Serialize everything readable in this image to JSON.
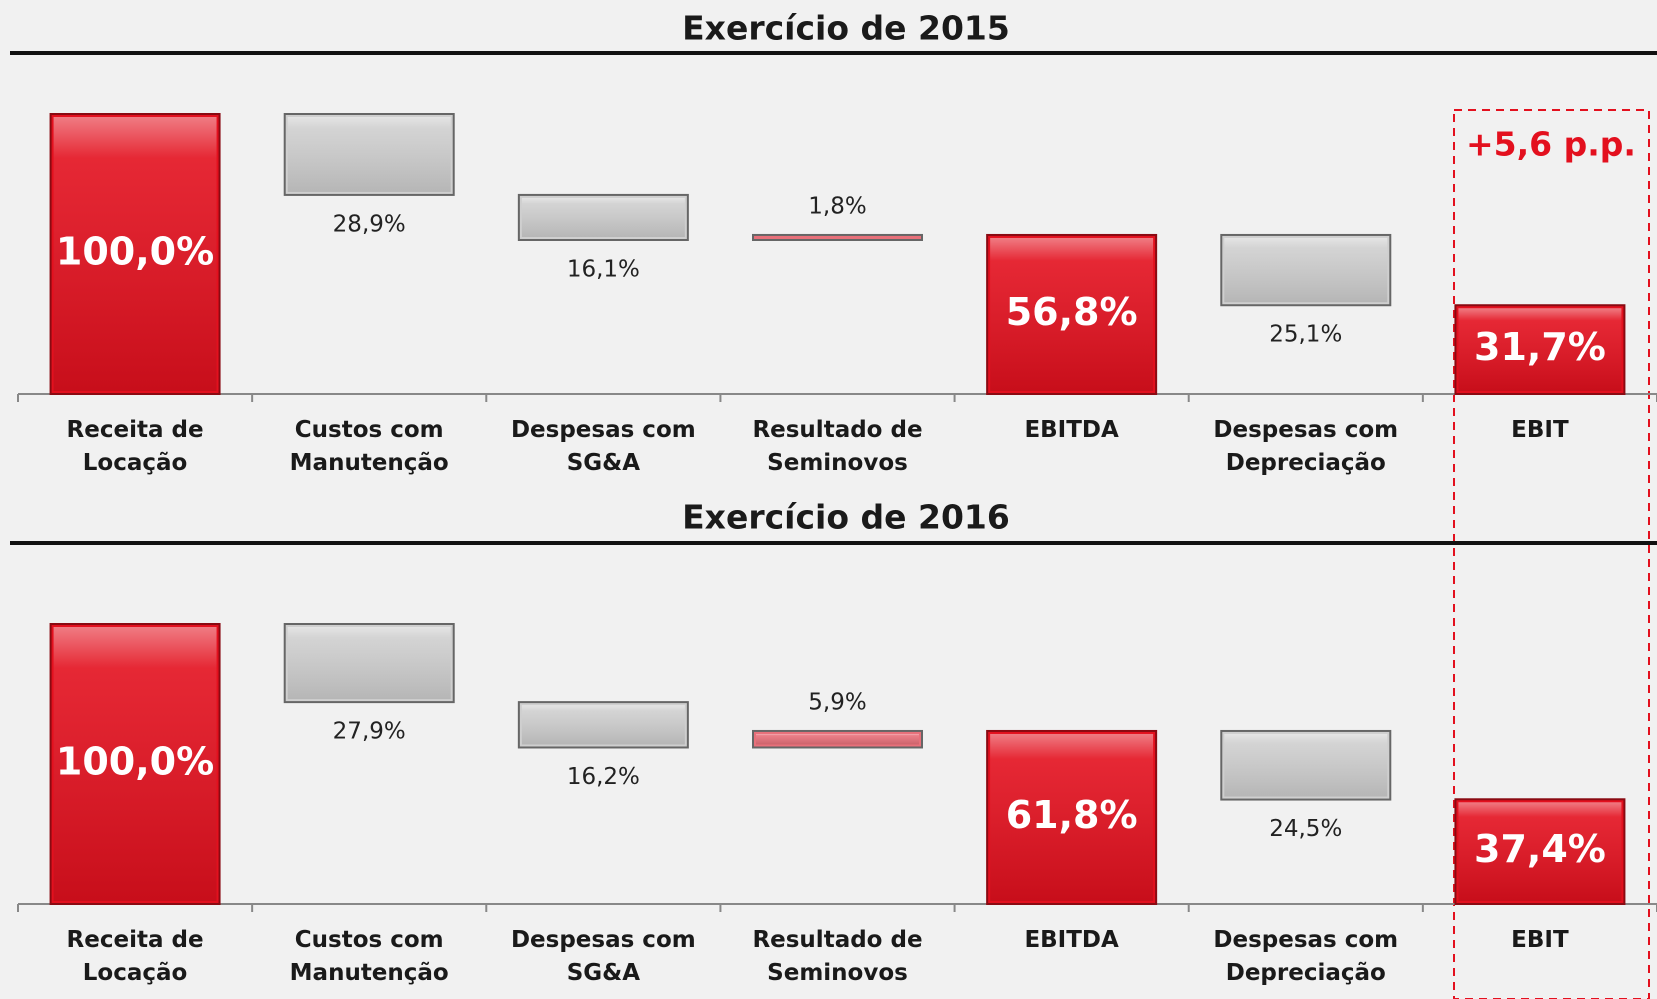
{
  "chart_data": [
    {
      "type": "waterfall",
      "title": "Exercício de 2015",
      "categories": [
        "Receita de Locação",
        "Custos com Manutenção",
        "Despesas com SG&A",
        "Resultado de Seminovos",
        "EBITDA",
        "Despesas com Depreciação",
        "EBIT"
      ],
      "measures": [
        "total",
        "decrease",
        "decrease",
        "increase",
        "total",
        "decrease",
        "total"
      ],
      "values": [
        100.0,
        28.9,
        16.1,
        1.8,
        56.8,
        25.1,
        31.7
      ],
      "value_labels": [
        "100,0%",
        "28,9%",
        "16,1%",
        "1,8%",
        "56,8%",
        "25,1%",
        "31,7%"
      ],
      "colors": [
        "#e3101e",
        "#cfcfcf",
        "#cfcfcf",
        "#e8707a",
        "#e3101e",
        "#cfcfcf",
        "#e3101e"
      ],
      "ylim": [
        0,
        100
      ],
      "annotation": "+5,6 p.p."
    },
    {
      "type": "waterfall",
      "title": "Exercício de 2016",
      "categories": [
        "Receita de Locação",
        "Custos com Manutenção",
        "Despesas com SG&A",
        "Resultado de Seminovos",
        "EBITDA",
        "Despesas com Depreciação",
        "EBIT"
      ],
      "measures": [
        "total",
        "decrease",
        "decrease",
        "increase",
        "total",
        "decrease",
        "total"
      ],
      "values": [
        100.0,
        27.9,
        16.2,
        5.9,
        61.8,
        24.5,
        37.4
      ],
      "value_labels": [
        "100,0%",
        "27,9%",
        "16,2%",
        "5,9%",
        "61,8%",
        "24,5%",
        "37,4%"
      ],
      "colors": [
        "#e3101e",
        "#cfcfcf",
        "#cfcfcf",
        "#e8707a",
        "#e3101e",
        "#cfcfcf",
        "#e3101e"
      ],
      "ylim": [
        0,
        100
      ]
    }
  ]
}
